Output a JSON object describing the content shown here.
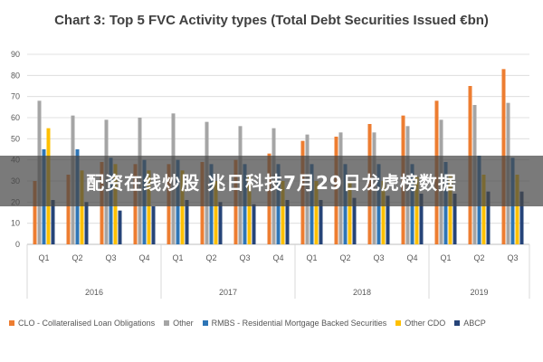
{
  "chart_data": {
    "type": "bar",
    "title": "Chart 3: Top 5 FVC Activity types (Total Debt Securities Issued €bn)",
    "ylim": [
      0,
      90
    ],
    "yticks": [
      0,
      10,
      20,
      30,
      40,
      50,
      60,
      70,
      80,
      90
    ],
    "grid": true,
    "legend_position": "bottom",
    "categories": [
      "Q1",
      "Q2",
      "Q3",
      "Q4",
      "Q1",
      "Q2",
      "Q3",
      "Q4",
      "Q1",
      "Q2",
      "Q3",
      "Q4",
      "Q1",
      "Q2",
      "Q3"
    ],
    "year_groups": [
      {
        "label": "2016",
        "count": 4
      },
      {
        "label": "2017",
        "count": 4
      },
      {
        "label": "2018",
        "count": 4
      },
      {
        "label": "2019",
        "count": 3
      }
    ],
    "series": [
      {
        "name": "CLO - Collateralised Loan Obligations",
        "color": "#ed7d31",
        "values": [
          30,
          33,
          39,
          38,
          38,
          39,
          40,
          43,
          49,
          51,
          57,
          61,
          68,
          75,
          83
        ]
      },
      {
        "name": "Other",
        "color": "#a5a5a5",
        "values": [
          68,
          61,
          59,
          60,
          62,
          58,
          56,
          55,
          52,
          53,
          53,
          56,
          59,
          66,
          67
        ]
      },
      {
        "name": "RMBS - Residential Mortgage Backed Securities",
        "color": "#2e75b6",
        "values": [
          45,
          45,
          41,
          40,
          40,
          38,
          38,
          38,
          38,
          38,
          38,
          38,
          39,
          42,
          41
        ]
      },
      {
        "name": "Other CDO",
        "color": "#ffc000",
        "values": [
          55,
          35,
          38,
          35,
          35,
          30,
          33,
          30,
          30,
          30,
          30,
          32,
          33,
          33,
          33
        ]
      },
      {
        "name": "ABCP",
        "color": "#264478",
        "values": [
          21,
          20,
          16,
          18,
          21,
          20,
          19,
          21,
          21,
          22,
          23,
          24,
          24,
          25,
          25
        ]
      }
    ]
  },
  "overlay": {
    "text": "配资在线炒股 兆日科技7月29日龙虎榜数据"
  }
}
